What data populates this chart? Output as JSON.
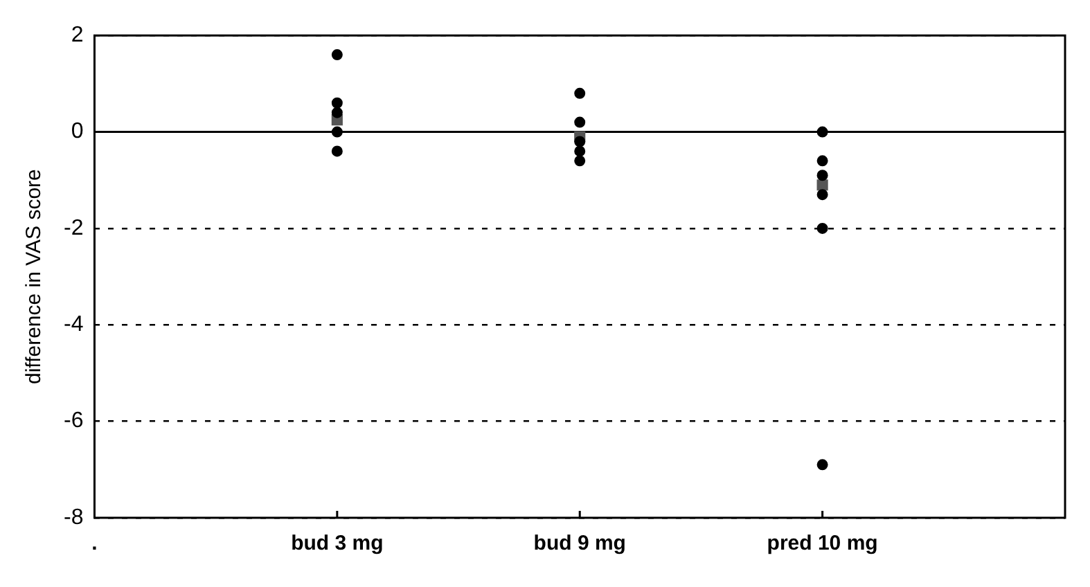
{
  "chart_data": {
    "type": "scatter",
    "ylabel": "difference in VAS score",
    "categories": [
      ".",
      "bud 3 mg",
      "bud 9 mg",
      "pred 10 mg",
      null
    ],
    "series": [
      {
        "type": "scatter",
        "marker": "circle",
        "color": "#000000",
        "x": [
          "bud 3 mg",
          "bud 3 mg",
          "bud 3 mg",
          "bud 3 mg",
          "bud 3 mg",
          "bud 9 mg",
          "bud 9 mg",
          "bud 9 mg",
          "bud 9 mg",
          "bud 9 mg",
          "pred 10 mg",
          "pred 10 mg",
          "pred 10 mg",
          "pred 10 mg",
          "pred 10 mg",
          "pred 10 mg"
        ],
        "values": [
          1.6,
          0.6,
          0.4,
          0,
          -0.4,
          0.8,
          0.2,
          -0.2,
          -0.4,
          -0.6,
          0,
          -0.6,
          -0.9,
          -1.3,
          -2,
          -6.9
        ]
      },
      {
        "type": "scatter",
        "marker": "square",
        "color": "#555555",
        "x": [
          "bud 3 mg",
          "bud 9 mg",
          "pred 10 mg"
        ],
        "values": [
          0.25,
          -0.1,
          -1.1
        ]
      }
    ],
    "ylim": [
      -8,
      2
    ],
    "yticks": [
      -8,
      -6,
      -4,
      -2,
      0,
      2
    ],
    "grid": "y",
    "line_style": "dashed",
    "ref_lines": [
      {
        "axis": "y",
        "value": 0,
        "color": "#000000",
        "line_style": "solid"
      }
    ],
    "legend": false
  }
}
